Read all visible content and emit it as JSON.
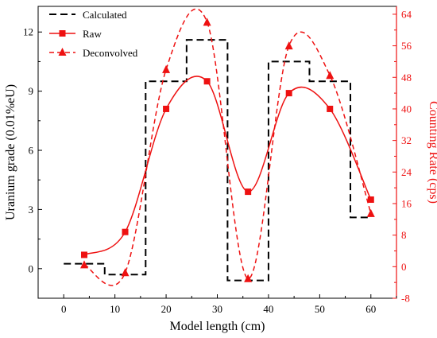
{
  "chart_data": {
    "type": "line",
    "xlabel": "Model length (cm)",
    "ylabel": "Uranium grade (0.01%eU)",
    "y2label": "Counting Rate (cps)",
    "xlim": [
      -5,
      65
    ],
    "ylim": [
      -1.5,
      13.3
    ],
    "y2lim": [
      -8,
      66
    ],
    "x_ticks": [
      0,
      10,
      20,
      30,
      40,
      50,
      60
    ],
    "y_ticks": [
      0,
      3,
      6,
      9,
      12
    ],
    "y2_ticks": [
      -8,
      0,
      8,
      16,
      24,
      32,
      40,
      48,
      56,
      64
    ],
    "grid": false,
    "legend_position": "top-left",
    "series": [
      {
        "name": "Calculated",
        "axis": "left",
        "style": "dashed-step",
        "color": "#000000",
        "x": [
          0,
          8,
          8,
          16,
          16,
          24,
          24,
          32,
          32,
          40,
          40,
          48,
          48,
          56,
          56,
          60
        ],
        "y": [
          0.25,
          0.25,
          -0.3,
          -0.3,
          9.5,
          9.5,
          11.6,
          11.6,
          -0.6,
          -0.6,
          10.5,
          10.5,
          9.5,
          9.5,
          2.6,
          2.6
        ]
      },
      {
        "name": "Raw",
        "axis": "right",
        "style": "solid",
        "marker": "square",
        "color": "#ee1111",
        "x": [
          4,
          12,
          20,
          28,
          36,
          44,
          52,
          60
        ],
        "y": [
          3,
          8.8,
          40,
          47,
          19,
          44,
          40,
          17
        ]
      },
      {
        "name": "Deconvolved",
        "axis": "right",
        "style": "dashed",
        "marker": "triangle",
        "color": "#ee1111",
        "x": [
          4,
          12,
          20,
          28,
          36,
          44,
          52,
          60
        ],
        "y": [
          0.5,
          -1.5,
          50,
          62,
          -3,
          56,
          48.5,
          13.5
        ]
      }
    ]
  }
}
